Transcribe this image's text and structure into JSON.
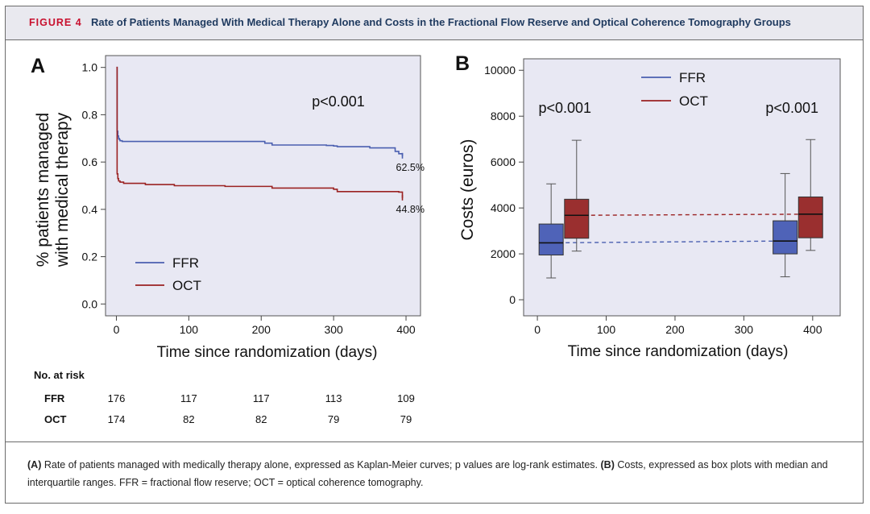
{
  "header": {
    "figure_label": "FIGURE 4",
    "title": "Rate of Patients Managed With Medical Therapy Alone and Costs in the Fractional Flow Reserve and Optical Coherence Tomography Groups"
  },
  "colors": {
    "ffr": "#4a5fb0",
    "oct": "#9b2222",
    "plot_bg": "#e8e8f3",
    "accent": "#c8102e",
    "title": "#1f3a5f"
  },
  "chart_data": [
    {
      "panel": "A",
      "type": "line",
      "ylabel": "% patients managed with medical therapy",
      "ylabel_lines": [
        "% patients managed",
        "with medical therapy"
      ],
      "xlabel": "Time since randomization (days)",
      "xlim": [
        -15,
        420
      ],
      "ylim": [
        -0.05,
        1.05
      ],
      "xticks": [
        0,
        100,
        200,
        300,
        400
      ],
      "yticks": [
        0.0,
        0.2,
        0.4,
        0.6,
        0.8,
        1.0
      ],
      "ytick_labels": [
        "0.0",
        "0.2",
        "0.4",
        "0.6",
        "0.8",
        "1.0"
      ],
      "annotation": "p<0.001",
      "legend": [
        "FFR",
        "OCT"
      ],
      "series": [
        {
          "name": "FFR",
          "end_label": "62.5%",
          "x": [
            0,
            1,
            2,
            3,
            4,
            5,
            8,
            40,
            80,
            140,
            200,
            205,
            215,
            290,
            300,
            305,
            350,
            385,
            390,
            395
          ],
          "y": [
            1.0,
            0.73,
            0.71,
            0.7,
            0.695,
            0.69,
            0.687,
            0.687,
            0.687,
            0.687,
            0.687,
            0.68,
            0.672,
            0.67,
            0.668,
            0.665,
            0.66,
            0.645,
            0.635,
            0.625
          ]
        },
        {
          "name": "OCT",
          "end_label": "44.8%",
          "x": [
            0,
            1,
            2,
            3,
            5,
            10,
            40,
            80,
            150,
            215,
            300,
            305,
            350,
            390,
            395
          ],
          "y": [
            1.0,
            0.55,
            0.53,
            0.52,
            0.515,
            0.51,
            0.505,
            0.5,
            0.497,
            0.49,
            0.485,
            0.475,
            0.475,
            0.473,
            0.448
          ]
        }
      ],
      "at_risk": {
        "title": "No. at risk",
        "times": [
          0,
          100,
          200,
          300,
          400
        ],
        "rows": [
          {
            "name": "FFR",
            "values": [
              "176",
              "117",
              "117",
              "113",
              "109"
            ]
          },
          {
            "name": "OCT",
            "values": [
              "174",
              "82",
              "82",
              "79",
              "79"
            ]
          }
        ]
      }
    },
    {
      "panel": "B",
      "type": "box",
      "ylabel": "Costs (euros)",
      "xlabel": "Time since randomization (days)",
      "xlim": [
        -20,
        440
      ],
      "ylim": [
        -700,
        10500
      ],
      "xticks": [
        0,
        100,
        200,
        300,
        400
      ],
      "yticks": [
        0,
        2000,
        4000,
        6000,
        8000,
        10000
      ],
      "legend": [
        "FFR",
        "OCT"
      ],
      "annotations": [
        {
          "text": "p<0.001",
          "x": 40,
          "y": 8150
        },
        {
          "text": "p<0.001",
          "x": 370,
          "y": 8150
        }
      ],
      "boxes": [
        {
          "group": "FFR",
          "x": 20,
          "min": 950,
          "q1": 1950,
          "median": 2480,
          "q3": 3300,
          "max": 5050
        },
        {
          "group": "OCT",
          "x": 57,
          "min": 2120,
          "q1": 2680,
          "median": 3680,
          "q3": 4380,
          "max": 6950
        },
        {
          "group": "FFR",
          "x": 360,
          "min": 1000,
          "q1": 2000,
          "median": 2560,
          "q3": 3440,
          "max": 5500
        },
        {
          "group": "OCT",
          "x": 397,
          "min": 2150,
          "q1": 2700,
          "median": 3730,
          "q3": 4480,
          "max": 6980
        }
      ],
      "trend_lines": [
        {
          "group": "FFR",
          "x": [
            20,
            360
          ],
          "y": [
            2480,
            2560
          ]
        },
        {
          "group": "OCT",
          "x": [
            57,
            397
          ],
          "y": [
            3680,
            3730
          ]
        }
      ]
    }
  ],
  "caption": {
    "a_label": "(A)",
    "a_text": "Rate of patients managed with medically therapy alone, expressed as Kaplan-Meier curves; p values are log-rank estimates.",
    "b_label": "(B)",
    "b_text": "Costs, expressed as box plots with median and interquartile ranges. FFR = fractional flow reserve; OCT = optical coherence tomography."
  }
}
